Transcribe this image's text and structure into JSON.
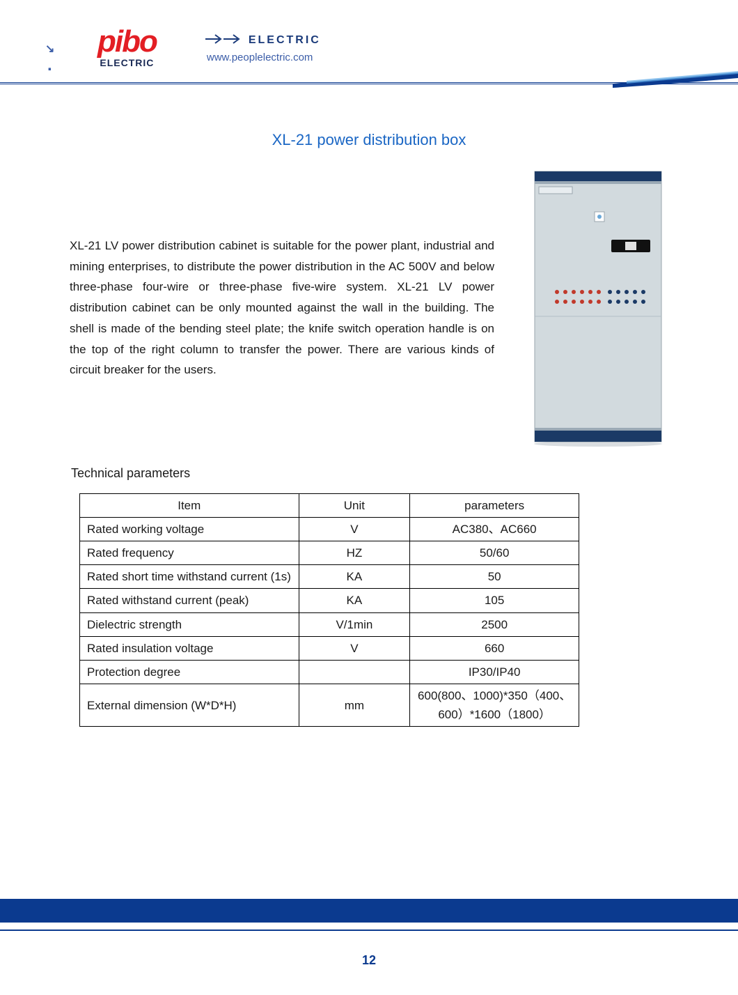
{
  "header": {
    "logo_text": "pibo",
    "logo_sub": "ELECTRIC",
    "electric_label": "ELECTRIC",
    "electric_url": "www.peoplelectric.com",
    "arrow_color": "#1a3a7a",
    "line_color": "#0b3a8f"
  },
  "title": "XL-21 power distribution box",
  "description": "XL-21 LV power distribution cabinet is suitable for the power plant, industrial and mining enterprises, to distribute the power distribution in the AC 500V and below three-phase four-wire or three-phase five-wire system. XL-21 LV power distribution cabinet can be only mounted against the wall in the building. The shell is made of the bending steel plate; the knife switch operation handle is on the top of the right column to transfer the power. There are various kinds of circuit breaker for the users.",
  "subtitle": "Technical parameters",
  "table": {
    "columns": [
      "Item",
      "Unit",
      "parameters"
    ],
    "rows": [
      [
        "Rated working voltage",
        "V",
        "AC380、AC660"
      ],
      [
        "Rated frequency",
        "HZ",
        "50/60"
      ],
      [
        "Rated short time withstand current (1s)",
        "KA",
        "50"
      ],
      [
        "Rated withstand current (peak)",
        "KA",
        "105"
      ],
      [
        "Dielectric strength",
        "V/1min",
        "2500"
      ],
      [
        "Rated insulation voltage",
        "V",
        "660"
      ],
      [
        "Protection degree",
        "",
        "IP30/IP40"
      ],
      [
        "External dimension (W*D*H)",
        "mm",
        "600(800、1000)*350（400、600）*1600（1800）"
      ]
    ],
    "border_color": "#000000",
    "text_color": "#1a1a1a",
    "font_size": 17
  },
  "product_image": {
    "cabinet_color": "#d2dade",
    "trim_color": "#1b3a66",
    "indicator_colors": [
      "#c0392b",
      "#1b3a66"
    ],
    "handle_color": "#111111"
  },
  "footer": {
    "band_color": "#0b3a8f",
    "page_number": "12"
  },
  "colors": {
    "title_color": "#1a66c4",
    "brand_red": "#e31e24",
    "brand_navy": "#1a2a55",
    "link_blue": "#3b5da8"
  }
}
